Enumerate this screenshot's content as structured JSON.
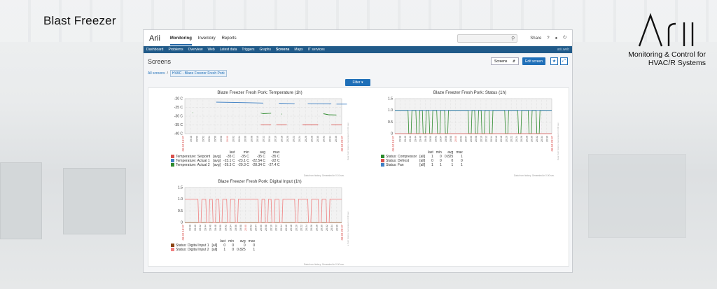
{
  "page": {
    "headline": "Blast Freezer",
    "logo_text": "Arii",
    "tagline_line1": "Monitoring & Control for",
    "tagline_line2": "HVAC/R Systems"
  },
  "app": {
    "brand": "Arii",
    "main_nav": [
      "Monitoring",
      "Inventory",
      "Reports"
    ],
    "share": "Share",
    "help_icon": "question-icon",
    "subnav": [
      "Dashboard",
      "Problems",
      "Overview",
      "Web",
      "Latest data",
      "Triggers",
      "Graphs",
      "Screens",
      "Maps",
      "IT services"
    ],
    "user": "arii.web",
    "page_title": "Screens",
    "screens_select": "Screens",
    "edit_button": "Edit screen",
    "breadcrumb_root": "All screens",
    "breadcrumb_current": "HVAC - Blaze Freezer Fresh Pork",
    "filter_button": "Filter ▾",
    "accent": "#1f6fb8"
  },
  "chart_data": [
    {
      "type": "line",
      "title": "Blaze Freezer Fresh Pork: Temperature (1h)",
      "y_tick_labels": [
        "-20 C",
        "-25 C",
        "-30 C",
        "-35 C",
        "-40 C"
      ],
      "ylim": [
        -40,
        -20
      ],
      "x_tick_labels": [
        "19:48",
        "19:50",
        "19:52",
        "19:54",
        "19:56",
        "19:58",
        "20:00",
        "20:02",
        "20:04",
        "20:06",
        "20:08",
        "20:10",
        "20:12",
        "20:14",
        "20:16",
        "20:18",
        "20:20",
        "20:22",
        "20:24",
        "20:26",
        "20:28",
        "20:30",
        "20:32",
        "20:34",
        "20:36"
      ],
      "x_start_label": "08-24 19:37",
      "x_end_label": "08-24 20:37",
      "legend_headers": [
        "last",
        "min",
        "avg",
        "max"
      ],
      "series": [
        {
          "name": "Temperature: Setpoint",
          "agg": "[avg]",
          "color": "#d9534f",
          "last": "-35 C",
          "min": "-35 C",
          "avg": "-35 C",
          "max": "-35 C",
          "segments": [
            [
              [
                29,
                -35
              ],
              [
                33,
                -35
              ]
            ],
            [
              [
                35,
                -35
              ],
              [
                39,
                -35
              ]
            ],
            [
              [
                45,
                -35
              ],
              [
                51,
                -35
              ]
            ],
            [
              [
                56,
                -35
              ],
              [
                60,
                -35
              ]
            ]
          ]
        },
        {
          "name": "Temperature: Actual 1",
          "agg": "[avg]",
          "color": "#3f80c4",
          "last": "-23.1 C",
          "min": "-23.1 C",
          "avg": "-22.54 C",
          "max": "-22 C",
          "segments": [
            [
              [
                12,
                -22
              ],
              [
                24,
                -22.3
              ],
              [
                30,
                -22.5
              ]
            ],
            [
              [
                36,
                -22.6
              ],
              [
                42,
                -22.9
              ]
            ],
            [
              [
                47,
                -22.9
              ],
              [
                56,
                -23.0
              ]
            ],
            [
              [
                58,
                -23.1
              ],
              [
                62,
                -23.1
              ]
            ]
          ]
        },
        {
          "name": "Temperature: Actual 2",
          "agg": "[avg]",
          "color": "#2e8b2e",
          "last": "-29.3 C",
          "min": "-29.3 C",
          "avg": "-28.34 C",
          "max": "-27.4 C",
          "segments": [
            [
              [
                3,
                -28
              ],
              [
                3.2,
                -28
              ]
            ],
            [
              [
                29,
                -28.2
              ],
              [
                30,
                -28.6
              ],
              [
                33,
                -28.3
              ]
            ],
            [
              [
                37,
                -28.8
              ],
              [
                37.2,
                -28.8
              ]
            ],
            [
              [
                53,
                -28.6
              ],
              [
                55,
                -29.2
              ],
              [
                58,
                -29.3
              ]
            ]
          ]
        }
      ],
      "footer": "Data from history. Generated in 0.01 sec."
    },
    {
      "type": "line",
      "title": "Blaze Freezer Fresh Pork: Status (1h)",
      "y_tick_labels": [
        "1.5",
        "1.0",
        "0.5",
        "0"
      ],
      "ylim": [
        0,
        1.5
      ],
      "x_tick_labels": [
        "19:38",
        "19:40",
        "19:42",
        "19:44",
        "19:46",
        "19:48",
        "19:50",
        "19:52",
        "19:54",
        "19:56",
        "19:58",
        "20:00",
        "20:02",
        "20:04",
        "20:06",
        "20:08",
        "20:10",
        "20:12",
        "20:14",
        "20:16",
        "20:18",
        "20:20",
        "20:22",
        "20:24",
        "20:26",
        "20:28",
        "20:30",
        "20:32",
        "20:34",
        "20:36"
      ],
      "x_start_label": "08-24 19:37",
      "x_end_label": "08-24 20:37",
      "legend_headers": [
        "last",
        "min",
        "avg",
        "max"
      ],
      "series": [
        {
          "name": "Status: Compressor",
          "agg": "[all]",
          "color": "#2e8b2e",
          "last": "1",
          "min": "0",
          "avg": "0.825",
          "max": "1",
          "drops": [
            [
              5,
              6.5
            ],
            [
              8,
              9.5
            ],
            [
              10.5,
              12
            ],
            [
              13,
              14.5
            ],
            [
              16,
              17.5
            ],
            [
              19,
              20.5
            ],
            [
              28,
              29.5
            ],
            [
              30.5,
              32
            ],
            [
              33,
              34.5
            ],
            [
              36,
              37.5
            ],
            [
              42,
              43.5
            ],
            [
              47,
              48.5
            ],
            [
              51,
              52.5
            ],
            [
              54,
              55.5
            ]
          ]
        },
        {
          "name": "Status: Defrost",
          "agg": "[all]",
          "color": "#d9534f",
          "last": "0",
          "min": "0",
          "avg": "0",
          "max": "0",
          "value": 0
        },
        {
          "name": "Status: Fan",
          "agg": "[all]",
          "color": "#3f80c4",
          "last": "1",
          "min": "1",
          "avg": "1",
          "max": "1",
          "value": 1
        }
      ],
      "footer": "Data from history. Generated in 0.00 sec."
    },
    {
      "type": "line",
      "title": "Blaze Freezer Fresh Pork: Digital Input (1h)",
      "y_tick_labels": [
        "1.5",
        "1.0",
        "0.5",
        "0"
      ],
      "ylim": [
        0,
        1.5
      ],
      "x_tick_labels": [
        "19:38",
        "19:40",
        "19:42",
        "19:44",
        "19:46",
        "19:48",
        "19:50",
        "19:52",
        "19:54",
        "19:56",
        "19:58",
        "20:00",
        "20:02",
        "20:04",
        "20:06",
        "20:08",
        "20:10",
        "20:12",
        "20:14",
        "20:16",
        "20:18",
        "20:20",
        "20:22",
        "20:24",
        "20:26",
        "20:28",
        "20:30",
        "20:32",
        "20:34",
        "20:36"
      ],
      "x_start_label": "08-24 19:37",
      "x_end_label": "08-24 20:37",
      "legend_headers": [
        "last",
        "min",
        "avg",
        "max"
      ],
      "series": [
        {
          "name": "Status: Digital Input 1",
          "agg": "[all]",
          "color": "#8b4513",
          "last": "0",
          "min": "0",
          "avg": "0",
          "max": "0",
          "value": 0
        },
        {
          "name": "Status: Digital Input 2",
          "agg": "[all]",
          "color": "#f08080",
          "last": "1",
          "min": "0",
          "avg": "0.825",
          "max": "1",
          "drops": [
            [
              5,
              6.5
            ],
            [
              8,
              9.5
            ],
            [
              10.5,
              12
            ],
            [
              13,
              14.5
            ],
            [
              16,
              17.5
            ],
            [
              19,
              20.5
            ],
            [
              28,
              29.5
            ],
            [
              30.5,
              32
            ],
            [
              33,
              34.5
            ],
            [
              36,
              37.5
            ],
            [
              42,
              43.5
            ],
            [
              47,
              48.5
            ],
            [
              51,
              52.5
            ],
            [
              54,
              55.5
            ]
          ]
        }
      ],
      "footer": "Data from history. Generated in 0.00 sec."
    }
  ]
}
